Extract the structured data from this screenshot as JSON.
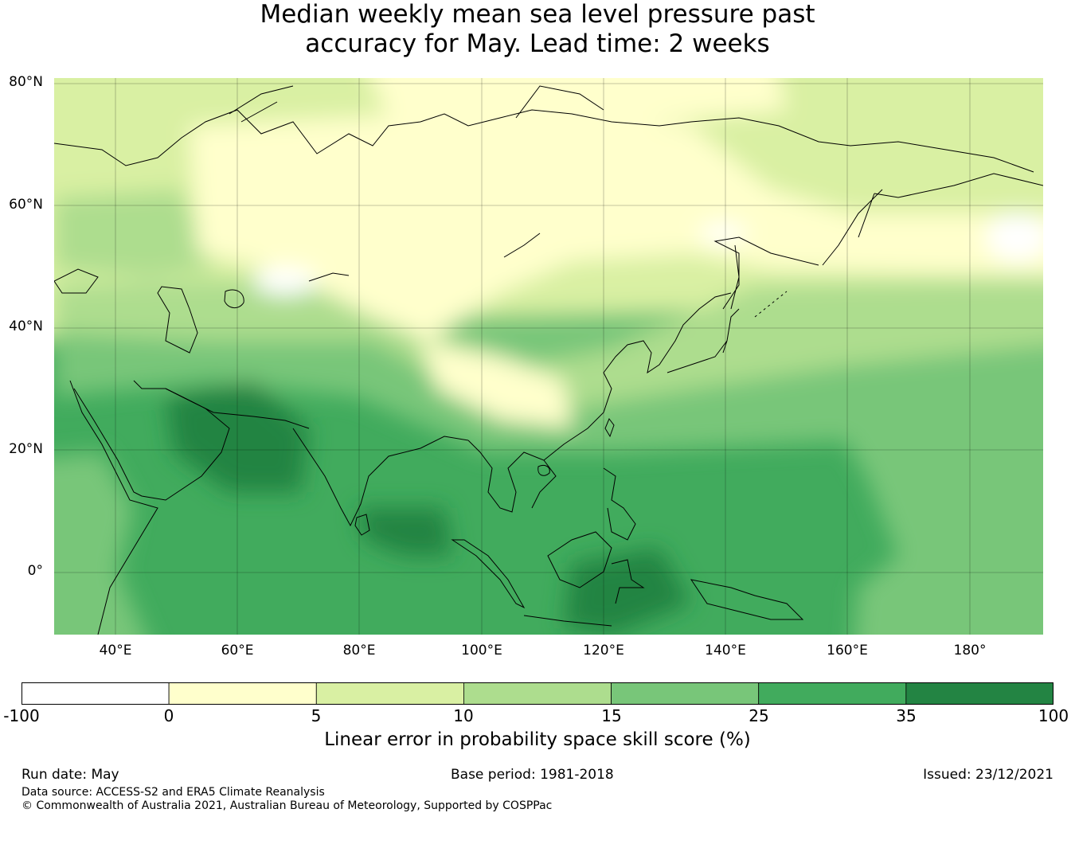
{
  "title": {
    "line1": "Median weekly mean sea level pressure past",
    "line2": "accuracy for May. Lead time: 2 weeks"
  },
  "map": {
    "lat_labels": [
      "80°N",
      "60°N",
      "40°N",
      "20°N",
      "0°"
    ],
    "lon_labels": [
      "40°E",
      "60°E",
      "80°E",
      "100°E",
      "120°E",
      "140°E",
      "160°E",
      "180°"
    ],
    "extent": {
      "lon": [
        30,
        192
      ],
      "lat": [
        -10,
        81
      ]
    }
  },
  "colorbar": {
    "label": "Linear error in probability space skill score (%)",
    "ticks": [
      "-100",
      "0",
      "5",
      "10",
      "15",
      "25",
      "35",
      "100"
    ],
    "colors": [
      "#ffffff",
      "#ffffcc",
      "#d9f0a3",
      "#addd8e",
      "#78c679",
      "#41ab5d",
      "#238443"
    ]
  },
  "footer": {
    "run_date": "Run date: May",
    "base_period": "Base period: 1981-2018",
    "issued": "Issued: 23/12/2021",
    "data_source": "Data source: ACCESS-S2 and ERA5 Climate Reanalysis",
    "copyright": "© Commonwealth of Australia 2021, Australian Bureau of Meteorology, Supported by COSPPac"
  }
}
